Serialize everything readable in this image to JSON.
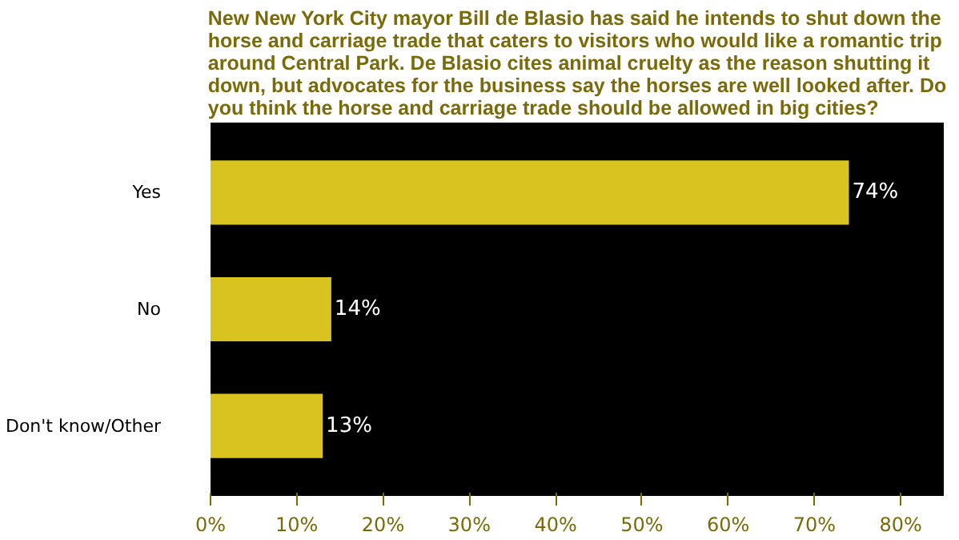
{
  "chart_data": {
    "type": "bar",
    "orientation": "horizontal",
    "title": "New New York City mayor Bill de Blasio has said he intends to shut down the horse and carriage trade that caters to visitors who would like a romantic trip around Central Park. De Blasio cites animal cruelty as the reason shutting it down, but advocates for the business say the horses are well looked after. Do you think the horse and carriage trade should be allowed in big cities?",
    "categories": [
      "Yes",
      "No",
      "Don't know/Other"
    ],
    "values": [
      74,
      14,
      13
    ],
    "value_labels": [
      "74%",
      "14%",
      "13%"
    ],
    "color": "#d9c41f",
    "xlim": [
      0,
      85
    ],
    "xticks": [
      {
        "value": 0,
        "label": "0%"
      },
      {
        "value": 10,
        "label": "10%"
      },
      {
        "value": 20,
        "label": "20%"
      },
      {
        "value": 30,
        "label": "30%"
      },
      {
        "value": 40,
        "label": "40%"
      },
      {
        "value": 50,
        "label": "50%"
      },
      {
        "value": 60,
        "label": "60%"
      },
      {
        "value": 70,
        "label": "70%"
      },
      {
        "value": 80,
        "label": "80%"
      }
    ],
    "grid": false
  }
}
